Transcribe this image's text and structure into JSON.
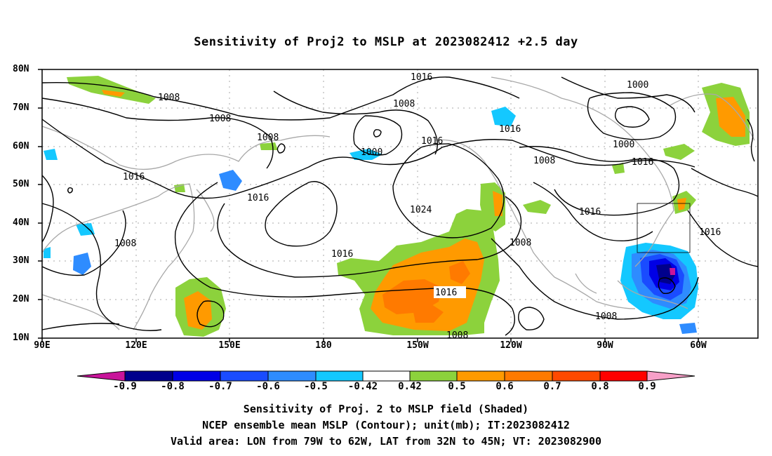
{
  "title": "Sensitivity of Proj2 to MSLP at 2023082412 +2.5 day",
  "lat_labels": [
    "80N",
    "70N",
    "60N",
    "50N",
    "40N",
    "30N",
    "20N",
    "10N"
  ],
  "lon_labels": [
    "90E",
    "120E",
    "150E",
    "180",
    "150W",
    "120W",
    "90W",
    "60W"
  ],
  "contour_labels": [
    "1016",
    "1008",
    "1008",
    "1008",
    "1016",
    "1008",
    "1000",
    "1016",
    "1016",
    "1024",
    "1016",
    "1016",
    "1008",
    "1016",
    "1008",
    "1000",
    "1000",
    "1016",
    "1008",
    "1016",
    "1016",
    "1008",
    "1008"
  ],
  "colorbar": {
    "labels": [
      "-0.9",
      "-0.8",
      "-0.7",
      "-0.6",
      "-0.5",
      "-0.42",
      "0.42",
      "0.5",
      "0.6",
      "0.7",
      "0.8",
      "0.9"
    ],
    "colors": [
      "#c8149a",
      "#00008c",
      "#0000e6",
      "#1a4cff",
      "#2e8cff",
      "#14c8ff",
      "#ffffff",
      "#8cd23c",
      "#ff9a00",
      "#ff7a00",
      "#ff4a00",
      "#ff0000",
      "#f7a0c8"
    ]
  },
  "captions": [
    "Sensitivity of Proj. 2 to MSLP field (Shaded)",
    "NCEP ensemble mean MSLP (Contour); unit(mb); IT:2023082412",
    "Valid area: LON from 79W to 62W, LAT from 32N to 45N; VT: 2023082900"
  ]
}
